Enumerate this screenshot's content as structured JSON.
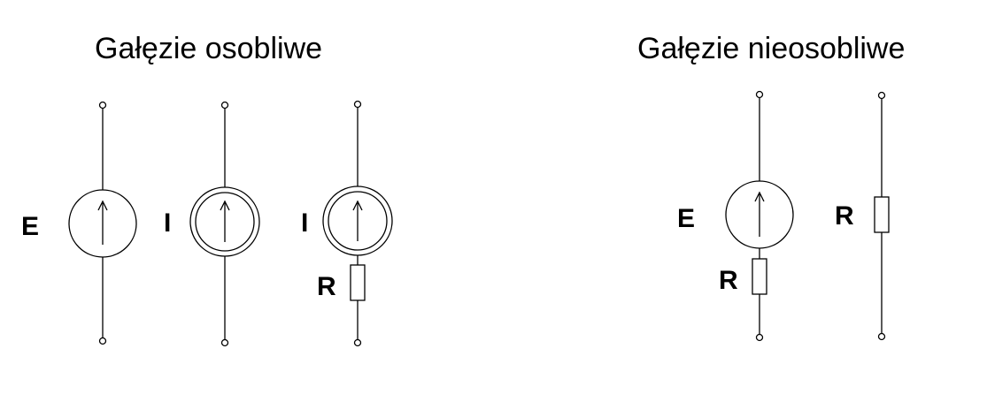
{
  "groups": {
    "singular": {
      "title": "Gałęzie osobliwe",
      "labels": {
        "emf_source": "E",
        "current_source": "I",
        "current_source_with_r": "I",
        "resistor": "R"
      }
    },
    "nonsingular": {
      "title": "Gałęzie nieosobliwe",
      "labels": {
        "emf_source": "E",
        "resistor_series": "R",
        "resistor": "R"
      }
    }
  },
  "colors": {
    "line": "#000000",
    "background": "#ffffff"
  }
}
